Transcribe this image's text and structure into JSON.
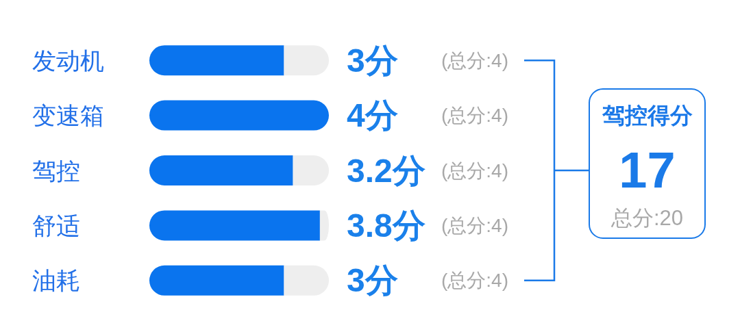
{
  "chart_data": [
    {
      "type": "bar",
      "orientation": "horizontal",
      "stacked": true,
      "tick_labels": "y",
      "xlim": [
        0,
        4
      ],
      "categories": [
        "发动机",
        "变速箱",
        "驾控",
        "舒适",
        "油耗"
      ],
      "series": [
        {
          "color": "#0a74ee",
          "values": [
            3,
            4,
            3.2,
            3.8,
            3
          ],
          "value_labels": [
            "3分",
            "4分",
            "3.2分",
            "3.8分",
            "3分"
          ]
        },
        {
          "color": "#eeeeee",
          "values": [
            1,
            0,
            0.8,
            0.2,
            1
          ]
        }
      ],
      "annotations": [
        "(总分:4)",
        "(总分:4)",
        "(总分:4)",
        "(总分:4)",
        "(总分:4)"
      ]
    },
    {
      "type": "other",
      "title": "驾控得分",
      "annotations": [
        "17",
        "总分:20"
      ]
    }
  ]
}
